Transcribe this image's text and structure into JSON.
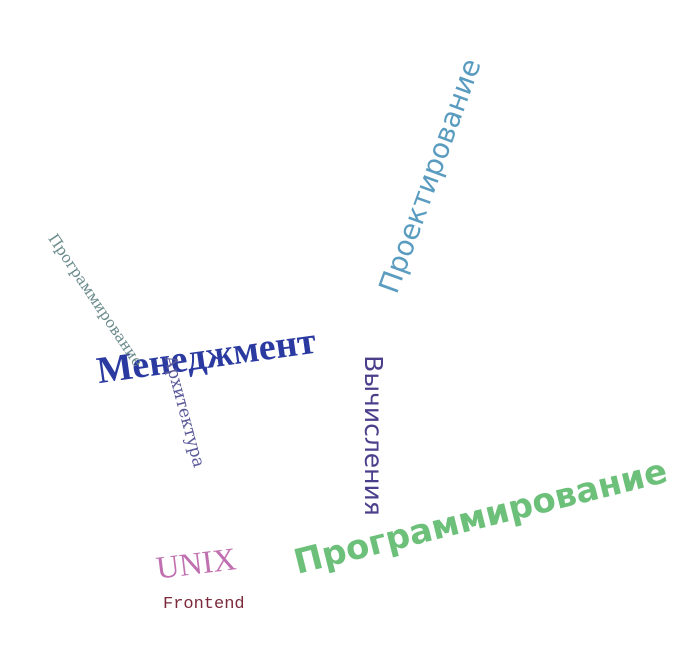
{
  "word_cloud": {
    "words": [
      {
        "text": "Программирование",
        "color": "#6cc07a",
        "font": "sans"
      },
      {
        "text": "Проектирование",
        "color": "#5a9cc0",
        "font": "sans"
      },
      {
        "text": "Менеджмент",
        "color": "#2a3aa0",
        "font": "lserif"
      },
      {
        "text": "Вычисления",
        "color": "#4a3f8a",
        "font": "sans"
      },
      {
        "text": "Архитектура",
        "color": "#5a5a9a",
        "font": "serif"
      },
      {
        "text": "Программирование",
        "color": "#6a8a8c",
        "font": "serif"
      },
      {
        "text": "UNIX",
        "color": "#c070b0",
        "font": "lserif"
      },
      {
        "text": "Frontend",
        "color": "#7a2a3a",
        "font": "mono"
      }
    ]
  }
}
